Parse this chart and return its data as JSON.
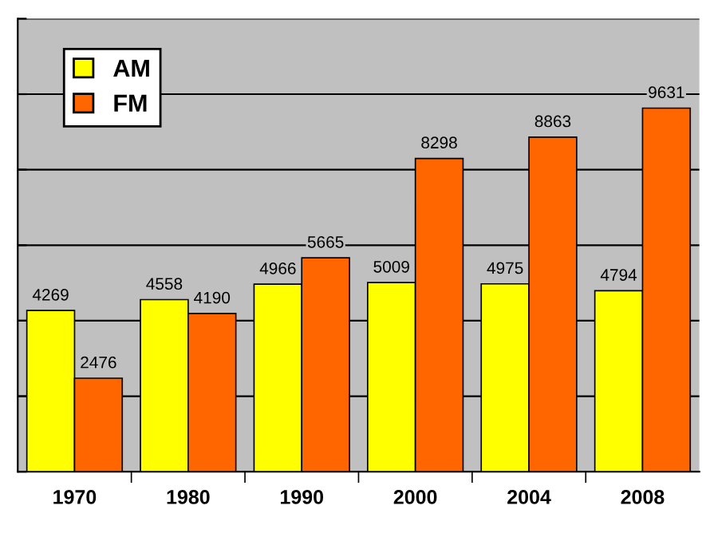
{
  "chart_data": {
    "type": "bar",
    "categories": [
      "1970",
      "1980",
      "1990",
      "2000",
      "2004",
      "2008"
    ],
    "series": [
      {
        "name": "AM",
        "color": "#ffff00",
        "values": [
          4269,
          4558,
          4966,
          5009,
          4975,
          4794
        ]
      },
      {
        "name": "FM",
        "color": "#ff6600",
        "values": [
          2476,
          4190,
          5665,
          8298,
          8863,
          9631
        ]
      }
    ],
    "ylim": [
      0,
      12000
    ],
    "yticks": [
      {
        "value": 0,
        "label": null
      },
      {
        "value": 2000,
        "label": null
      },
      {
        "value": 4000,
        "label": null
      },
      {
        "value": 6000,
        "label": null
      },
      {
        "value": 8000,
        "label": null
      },
      {
        "value": 10000,
        "label": null
      },
      {
        "value": 12000,
        "label": null
      }
    ],
    "grid": "y",
    "legend": "top left",
    "data_labels": true,
    "tick_labels": "x"
  }
}
